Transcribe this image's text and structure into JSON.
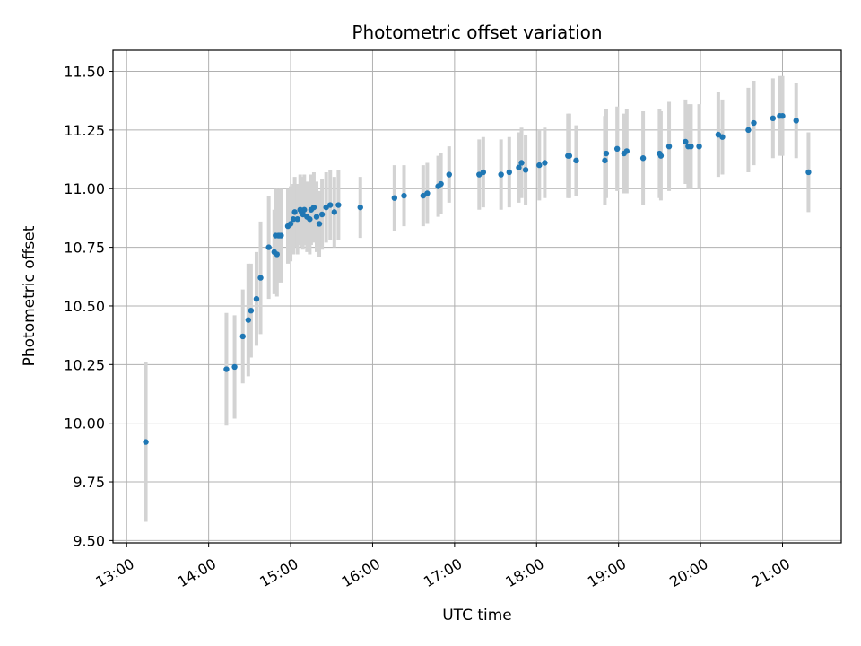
{
  "chart_data": {
    "type": "scatter",
    "title": "Photometric offset variation",
    "xlabel": "UTC time",
    "ylabel": "Photometric offset",
    "xlim": [
      "12:50",
      "21:43"
    ],
    "ylim": [
      9.49,
      11.59
    ],
    "x_ticks": [
      "13:00",
      "14:00",
      "15:00",
      "16:00",
      "17:00",
      "18:00",
      "19:00",
      "20:00",
      "21:00"
    ],
    "y_ticks": [
      "9.50",
      "9.75",
      "10.00",
      "10.25",
      "10.50",
      "10.75",
      "11.00",
      "11.25",
      "11.50"
    ],
    "grid": true,
    "colors": {
      "point": "#1f77b4",
      "errorbar": "#d3d3d3",
      "grid": "#b0b0b0"
    },
    "series": [
      {
        "x": [
          "13:14",
          "14:13",
          "14:19",
          "14:25",
          "14:29",
          "14:31",
          "14:35",
          "14:38",
          "14:44",
          "14:48",
          "14:49",
          "14:50",
          "14:51",
          "14:52",
          "14:53",
          "14:58",
          "15:00",
          "15:02",
          "15:03",
          "15:05",
          "15:07",
          "15:08",
          "15:09",
          "15:10",
          "15:12",
          "15:14",
          "15:15",
          "15:17",
          "15:19",
          "15:21",
          "15:23",
          "15:26",
          "15:29",
          "15:32",
          "15:35",
          "15:51",
          "16:16",
          "16:23",
          "16:37",
          "16:40",
          "16:48",
          "16:50",
          "16:56",
          "17:18",
          "17:21",
          "17:34",
          "17:40",
          "17:47",
          "17:49",
          "17:52",
          "18:02",
          "18:06",
          "18:23",
          "18:24",
          "18:29",
          "18:50",
          "18:51",
          "18:59",
          "19:04",
          "19:06",
          "19:18",
          "19:30",
          "19:31",
          "19:37",
          "19:49",
          "19:51",
          "19:53",
          "19:59",
          "20:13",
          "20:16",
          "20:35",
          "20:39",
          "20:53",
          "20:58",
          "21:00",
          "21:10",
          "21:19"
        ],
        "y": [
          9.92,
          10.23,
          10.24,
          10.37,
          10.44,
          10.48,
          10.53,
          10.62,
          10.75,
          10.73,
          10.8,
          10.72,
          10.8,
          10.8,
          10.8,
          10.84,
          10.85,
          10.87,
          10.9,
          10.87,
          10.91,
          10.9,
          10.89,
          10.91,
          10.88,
          10.87,
          10.91,
          10.92,
          10.88,
          10.85,
          10.89,
          10.92,
          10.93,
          10.9,
          10.93,
          10.92,
          10.96,
          10.97,
          10.97,
          10.98,
          11.01,
          11.02,
          11.06,
          11.06,
          11.07,
          11.06,
          11.07,
          11.09,
          11.11,
          11.08,
          11.1,
          11.11,
          11.14,
          11.14,
          11.12,
          11.12,
          11.15,
          11.17,
          11.15,
          11.16,
          11.13,
          11.15,
          11.14,
          11.18,
          11.2,
          11.18,
          11.18,
          11.18,
          11.23,
          11.22,
          11.25,
          11.28,
          11.3,
          11.31,
          11.31,
          11.29,
          11.07
        ],
        "err": [
          0.34,
          0.24,
          0.22,
          0.2,
          0.24,
          0.2,
          0.2,
          0.24,
          0.22,
          0.18,
          0.2,
          0.18,
          0.2,
          0.18,
          0.2,
          0.16,
          0.16,
          0.15,
          0.15,
          0.15,
          0.15,
          0.15,
          0.15,
          0.15,
          0.15,
          0.15,
          0.15,
          0.15,
          0.15,
          0.14,
          0.15,
          0.15,
          0.15,
          0.15,
          0.15,
          0.13,
          0.14,
          0.13,
          0.13,
          0.13,
          0.13,
          0.13,
          0.12,
          0.15,
          0.15,
          0.15,
          0.15,
          0.15,
          0.15,
          0.15,
          0.15,
          0.15,
          0.18,
          0.18,
          0.15,
          0.19,
          0.19,
          0.18,
          0.17,
          0.18,
          0.2,
          0.19,
          0.19,
          0.19,
          0.18,
          0.18,
          0.18,
          0.18,
          0.18,
          0.16,
          0.18,
          0.18,
          0.17,
          0.17,
          0.17,
          0.16,
          0.17
        ]
      }
    ]
  }
}
